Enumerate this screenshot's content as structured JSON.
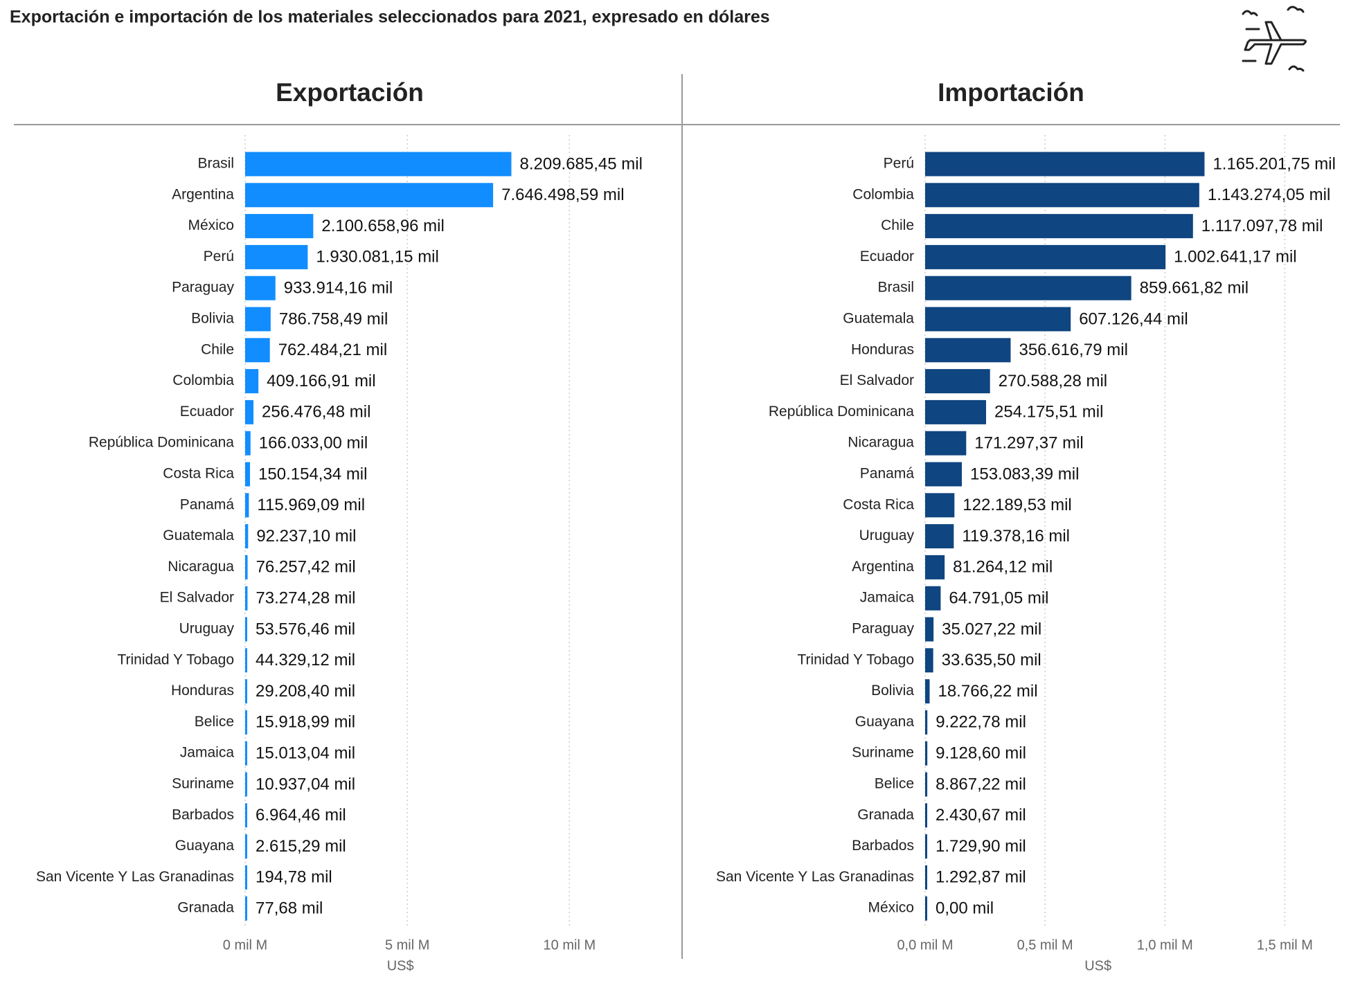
{
  "title": "Exportación e importación de los materiales seleccionados para 2021, expresado en dólares",
  "chart_data": [
    {
      "type": "hbar",
      "title": "Exportación",
      "xlabel": "US$",
      "color": "#118dff",
      "grid": true,
      "categories": [
        "Brasil",
        "Argentina",
        "México",
        "Perú",
        "Paraguay",
        "Bolivia",
        "Chile",
        "Colombia",
        "Ecuador",
        "República Dominicana",
        "Costa Rica",
        "Panamá",
        "Guatemala",
        "Nicaragua",
        "El Salvador",
        "Uruguay",
        "Trinidad Y Tobago",
        "Honduras",
        "Belice",
        "Jamaica",
        "Suriname",
        "Barbados",
        "Guayana",
        "San Vicente Y Las Granadinas",
        "Granada"
      ],
      "values": [
        8209685450,
        7646498590,
        2100658960,
        1930081150,
        933914160,
        786758490,
        762484210,
        409166910,
        256476480,
        166033000,
        150154340,
        115969090,
        92237100,
        76257420,
        73274280,
        53576460,
        44329120,
        29208400,
        15918990,
        15013040,
        10937040,
        6964460,
        2615290,
        194780,
        77680
      ],
      "value_labels": [
        "8.209.685,45 mil",
        "7.646.498,59 mil",
        "2.100.658,96 mil",
        "1.930.081,15 mil",
        "933.914,16 mil",
        "786.758,49 mil",
        "762.484,21 mil",
        "409.166,91 mil",
        "256.476,48 mil",
        "166.033,00 mil",
        "150.154,34 mil",
        "115.969,09 mil",
        "92.237,10 mil",
        "76.257,42 mil",
        "73.274,28 mil",
        "53.576,46 mil",
        "44.329,12 mil",
        "29.208,40 mil",
        "15.918,99 mil",
        "15.013,04 mil",
        "10.937,04 mil",
        "6.964,46 mil",
        "2.615,29 mil",
        "194,78 mil",
        "77,68 mil"
      ],
      "xlim": [
        0,
        12000000000
      ],
      "xticks": [
        {
          "value": 0,
          "label": "0 mil M"
        },
        {
          "value": 5000000000,
          "label": "5 mil M"
        },
        {
          "value": 10000000000,
          "label": "10 mil M"
        }
      ]
    },
    {
      "type": "hbar",
      "title": "Importación",
      "xlabel": "US$",
      "color": "#0f4580",
      "grid": true,
      "categories": [
        "Perú",
        "Colombia",
        "Chile",
        "Ecuador",
        "Brasil",
        "Guatemala",
        "Honduras",
        "El Salvador",
        "República Dominicana",
        "Nicaragua",
        "Panamá",
        "Costa Rica",
        "Uruguay",
        "Argentina",
        "Jamaica",
        "Paraguay",
        "Trinidad Y Tobago",
        "Bolivia",
        "Guayana",
        "Suriname",
        "Belice",
        "Granada",
        "Barbados",
        "San Vicente Y Las Granadinas",
        "México"
      ],
      "values": [
        1165201750,
        1143274050,
        1117097780,
        1002641170,
        859661820,
        607126440,
        356616790,
        270588280,
        254175510,
        171297370,
        153083390,
        122189530,
        119378160,
        81264120,
        64791050,
        35027220,
        33635500,
        18766220,
        9222780,
        9128600,
        8867220,
        2430670,
        1729900,
        1292870,
        0
      ],
      "value_labels": [
        "1.165.201,75 mil",
        "1.143.274,05 mil",
        "1.117.097,78 mil",
        "1.002.641,17 mil",
        "859.661,82 mil",
        "607.126,44 mil",
        "356.616,79 mil",
        "270.588,28 mil",
        "254.175,51 mil",
        "171.297,37 mil",
        "153.083,39 mil",
        "122.189,53 mil",
        "119.378,16 mil",
        "81.264,12 mil",
        "64.791,05 mil",
        "35.027,22 mil",
        "33.635,50 mil",
        "18.766,22 mil",
        "9.222,78 mil",
        "9.128,60 mil",
        "8.867,22 mil",
        "2.430,67 mil",
        "1.729,90 mil",
        "1.292,87 mil",
        "0,00 mil"
      ],
      "xlim": [
        0,
        1600000000
      ],
      "xticks": [
        {
          "value": 0,
          "label": "0,0 mil M"
        },
        {
          "value": 500000000,
          "label": "0,5 mil M"
        },
        {
          "value": 1000000000,
          "label": "1,0 mil M"
        },
        {
          "value": 1500000000,
          "label": "1,5 mil M"
        }
      ]
    }
  ]
}
